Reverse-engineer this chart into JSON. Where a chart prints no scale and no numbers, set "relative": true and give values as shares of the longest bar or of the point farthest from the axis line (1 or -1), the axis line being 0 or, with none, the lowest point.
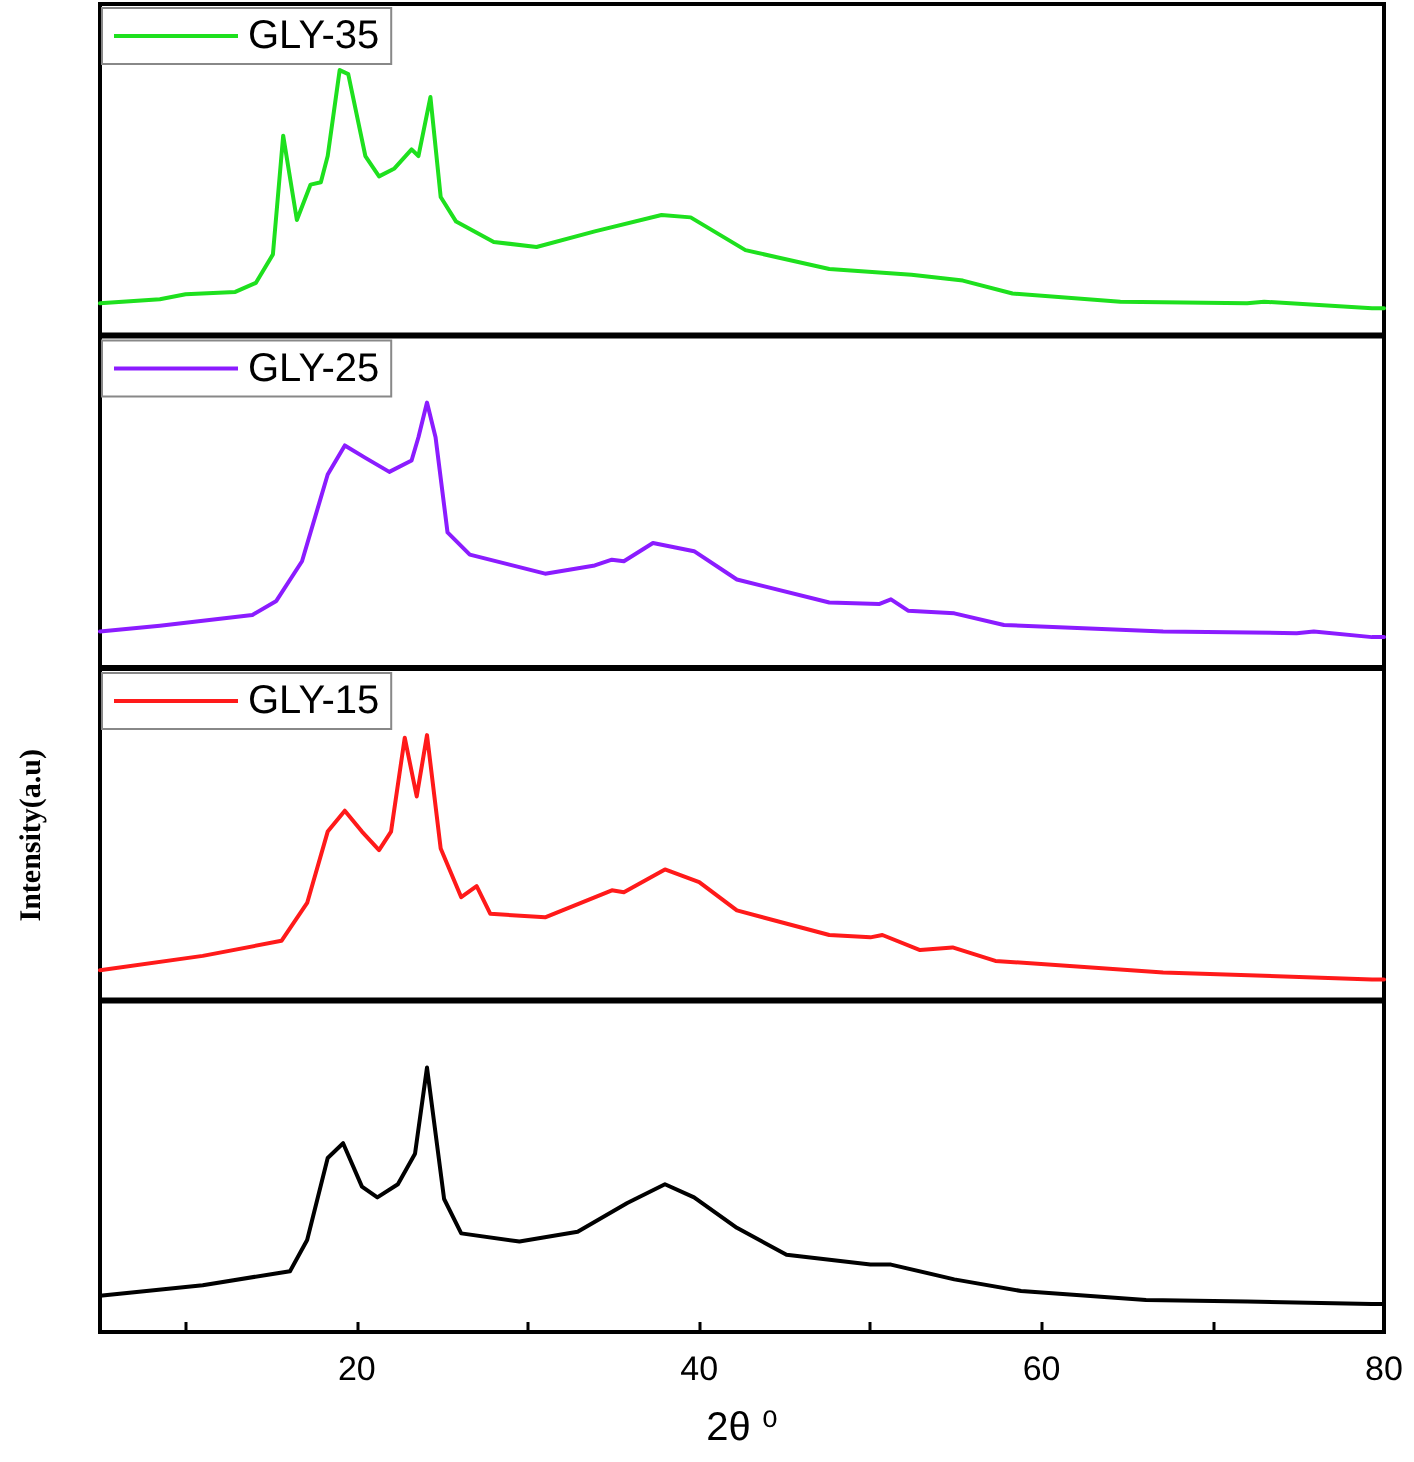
{
  "chart_data": [
    {
      "type": "line",
      "relative": true,
      "legend": "top left",
      "marker": "none",
      "xlim": [
        5,
        80
      ],
      "tick_labels": false,
      "series": [
        {
          "name": "GLY-35",
          "color": "#1ee01e",
          "x": [
            5,
            8.5,
            10,
            12.9,
            14.1,
            15.1,
            15.7,
            16.5,
            17.3,
            17.9,
            18.3,
            19.0,
            19.5,
            20.5,
            21.3,
            22.2,
            23.2,
            23.6,
            24.3,
            24.9,
            25.8,
            28.0,
            30.5,
            33.9,
            37.8,
            39.5,
            42.7,
            47.6,
            52.4,
            55.4,
            58.3,
            64.6,
            72.0,
            73.0,
            79.3,
            80
          ],
          "values": [
            0.118,
            0.133,
            0.152,
            0.161,
            0.195,
            0.303,
            0.752,
            0.433,
            0.567,
            0.576,
            0.675,
            1.0,
            0.985,
            0.675,
            0.598,
            0.628,
            0.7,
            0.675,
            0.898,
            0.52,
            0.427,
            0.35,
            0.331,
            0.39,
            0.452,
            0.443,
            0.319,
            0.248,
            0.226,
            0.204,
            0.155,
            0.124,
            0.118,
            0.124,
            0.099,
            0.099
          ]
        }
      ]
    },
    {
      "type": "line",
      "relative": true,
      "legend": "top left",
      "marker": "none",
      "xlim": [
        5,
        80
      ],
      "tick_labels": false,
      "series": [
        {
          "name": "GLY-25",
          "color": "#8b1cff",
          "x": [
            5,
            8.5,
            13.9,
            15.3,
            16.8,
            18.3,
            19.3,
            20.5,
            21.9,
            23.2,
            23.6,
            24.1,
            24.6,
            25.3,
            26.6,
            31.0,
            33.9,
            34.9,
            35.6,
            37.3,
            39.7,
            42.2,
            47.6,
            50.5,
            51.2,
            52.2,
            54.9,
            57.8,
            67.1,
            74.9,
            75.9,
            79.3,
            80
          ],
          "values": [
            0.134,
            0.156,
            0.197,
            0.25,
            0.4,
            0.728,
            0.838,
            0.791,
            0.738,
            0.781,
            0.869,
            1.0,
            0.869,
            0.509,
            0.425,
            0.353,
            0.384,
            0.406,
            0.4,
            0.469,
            0.438,
            0.331,
            0.244,
            0.238,
            0.256,
            0.213,
            0.203,
            0.159,
            0.134,
            0.128,
            0.134,
            0.113,
            0.113
          ]
        }
      ]
    },
    {
      "type": "line",
      "relative": true,
      "ylabel": "Intensity(a.u)",
      "legend": "top left",
      "marker": "none",
      "xlim": [
        5,
        80
      ],
      "tick_labels": false,
      "series": [
        {
          "name": "GLY-15",
          "color": "#ff1a1a",
          "x": [
            5,
            11,
            15.6,
            17.1,
            18.3,
            19.3,
            20.3,
            21.3,
            22.0,
            22.8,
            23.5,
            24.1,
            24.9,
            26.1,
            27.0,
            27.8,
            31.0,
            34.9,
            35.6,
            38.0,
            40.0,
            42.2,
            47.6,
            50.0,
            50.7,
            52.9,
            54.8,
            57.3,
            67.1,
            79.3,
            80
          ],
          "values": [
            0.111,
            0.165,
            0.222,
            0.365,
            0.635,
            0.714,
            0.635,
            0.565,
            0.635,
            0.99,
            0.768,
            1.0,
            0.571,
            0.387,
            0.429,
            0.324,
            0.311,
            0.413,
            0.406,
            0.492,
            0.444,
            0.337,
            0.244,
            0.235,
            0.244,
            0.187,
            0.197,
            0.146,
            0.102,
            0.076,
            0.076
          ]
        }
      ]
    },
    {
      "type": "line",
      "relative": true,
      "xlabel": "2θ ⁰",
      "marker": "none",
      "xlim": [
        5,
        80
      ],
      "tick_labels": "x",
      "xticks": [
        {
          "value": 10,
          "label": null
        },
        20,
        {
          "value": 30,
          "label": null
        },
        40,
        {
          "value": 50,
          "label": null
        },
        60,
        {
          "value": 70,
          "label": null
        },
        80
      ],
      "series": [
        {
          "color": "#000000",
          "x": [
            5,
            11,
            16.1,
            17.1,
            18.3,
            19.2,
            20.3,
            21.2,
            22.4,
            23.4,
            24.1,
            25.1,
            26.1,
            29.5,
            32.9,
            35.8,
            38.0,
            39.7,
            42.2,
            45.1,
            50.0,
            51.2,
            54.9,
            58.8,
            66.1,
            72.0,
            79.3,
            80
          ],
          "values": [
            0.137,
            0.177,
            0.23,
            0.348,
            0.658,
            0.714,
            0.55,
            0.509,
            0.559,
            0.674,
            1.0,
            0.503,
            0.373,
            0.342,
            0.379,
            0.488,
            0.559,
            0.509,
            0.394,
            0.292,
            0.255,
            0.255,
            0.199,
            0.155,
            0.121,
            0.115,
            0.106,
            0.106
          ]
        }
      ]
    }
  ]
}
